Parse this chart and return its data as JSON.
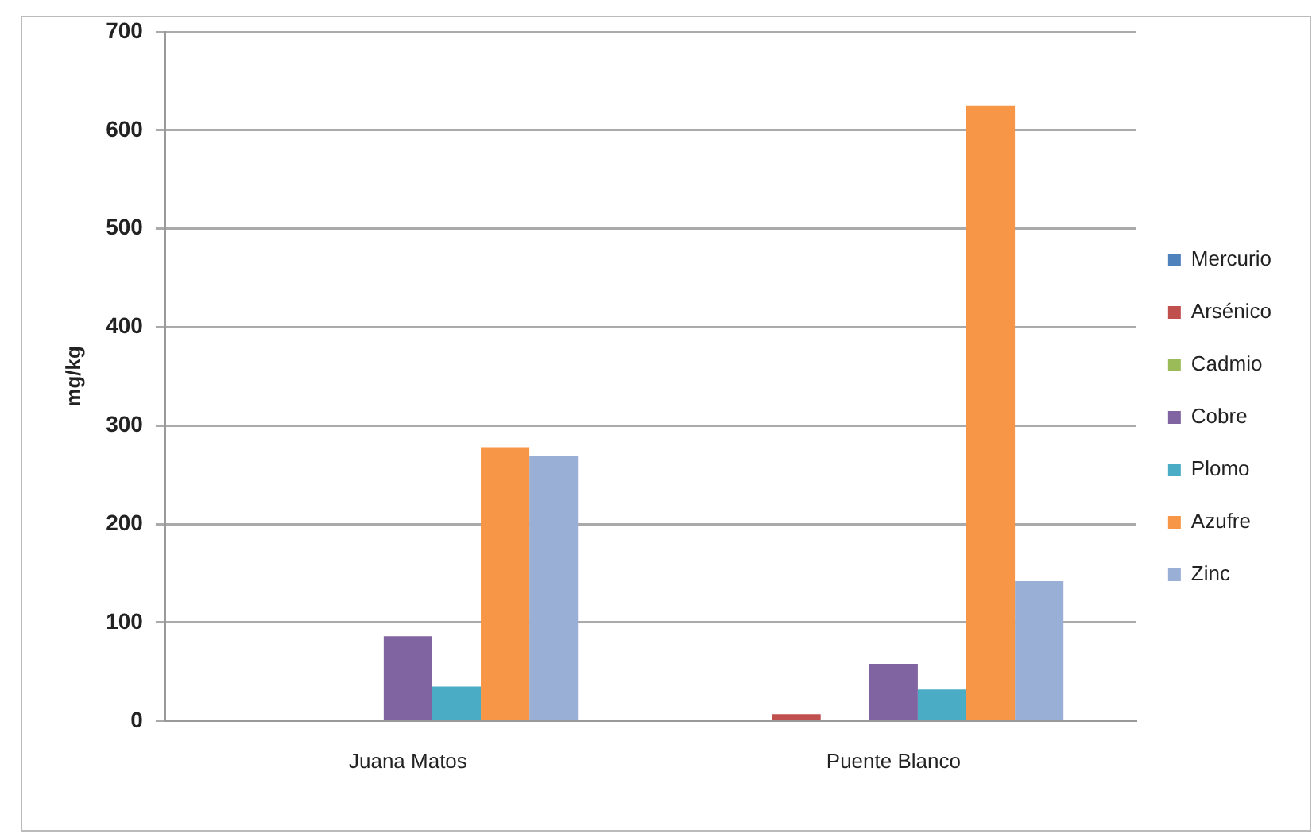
{
  "chart_data": {
    "type": "bar",
    "ylabel": "mg/kg",
    "categories": [
      "Juana Matos",
      "Puente Blanco"
    ],
    "series": [
      {
        "name": "Mercurio",
        "color": "#4f81bd",
        "values": [
          0,
          0
        ]
      },
      {
        "name": "Arsénico",
        "color": "#c0504d",
        "values": [
          0,
          7
        ]
      },
      {
        "name": "Cadmio",
        "color": "#9bbb59",
        "values": [
          0,
          0
        ]
      },
      {
        "name": "Cobre",
        "color": "#8064a2",
        "values": [
          86,
          58
        ]
      },
      {
        "name": "Plomo",
        "color": "#4bacc6",
        "values": [
          35,
          32
        ]
      },
      {
        "name": "Azufre",
        "color": "#f79646",
        "values": [
          278,
          625
        ]
      },
      {
        "name": "Zinc",
        "color": "#9aafd6",
        "values": [
          269,
          142
        ]
      }
    ],
    "ylim": [
      0,
      700
    ],
    "yticks": [
      0,
      100,
      200,
      300,
      400,
      500,
      600,
      700
    ],
    "grid": "y",
    "legend": "right"
  }
}
